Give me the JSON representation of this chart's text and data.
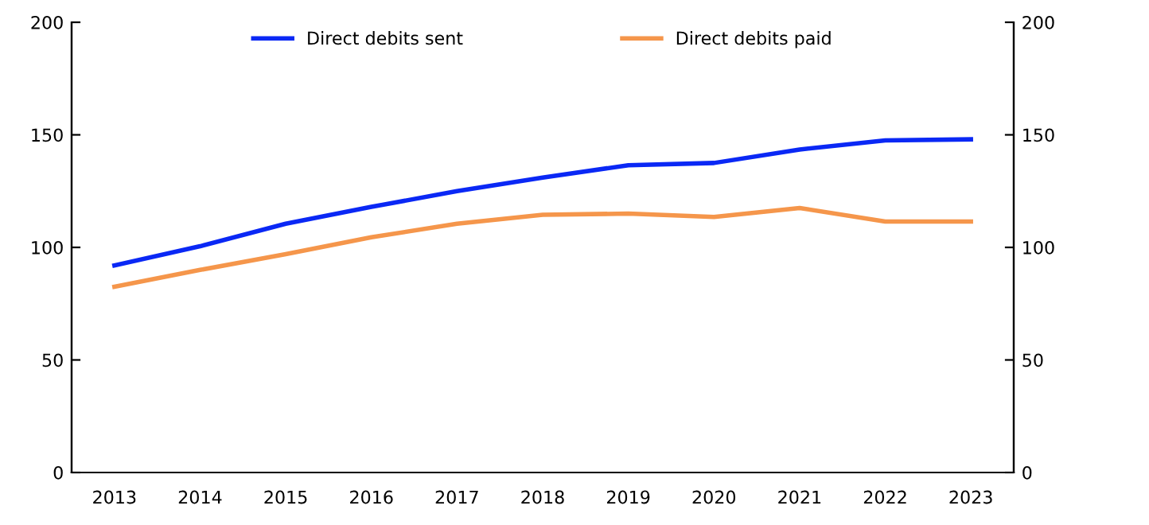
{
  "chart_data": {
    "type": "line",
    "categories": [
      "2013",
      "2014",
      "2015",
      "2016",
      "2017",
      "2018",
      "2019",
      "2020",
      "2021",
      "2022",
      "2023"
    ],
    "series": [
      {
        "name": "Direct debits sent",
        "color": "#0a28f5",
        "values": [
          92,
          100.5,
          110.5,
          118,
          125,
          131,
          136.5,
          137.5,
          143.5,
          147.5,
          148
        ]
      },
      {
        "name": "Direct debits paid",
        "color": "#f5964b",
        "values": [
          82.5,
          90,
          97,
          104.5,
          110.5,
          114.5,
          115,
          113.5,
          117.5,
          111.5,
          111.5
        ]
      }
    ],
    "ylim": [
      0,
      200
    ],
    "yticks": [
      0,
      50,
      100,
      150,
      200
    ],
    "y2lim": [
      0,
      200
    ],
    "y2ticks": [
      0,
      50,
      100,
      150,
      200
    ],
    "grid": false,
    "legend": "top",
    "marker": "none",
    "line_style": "solid"
  }
}
